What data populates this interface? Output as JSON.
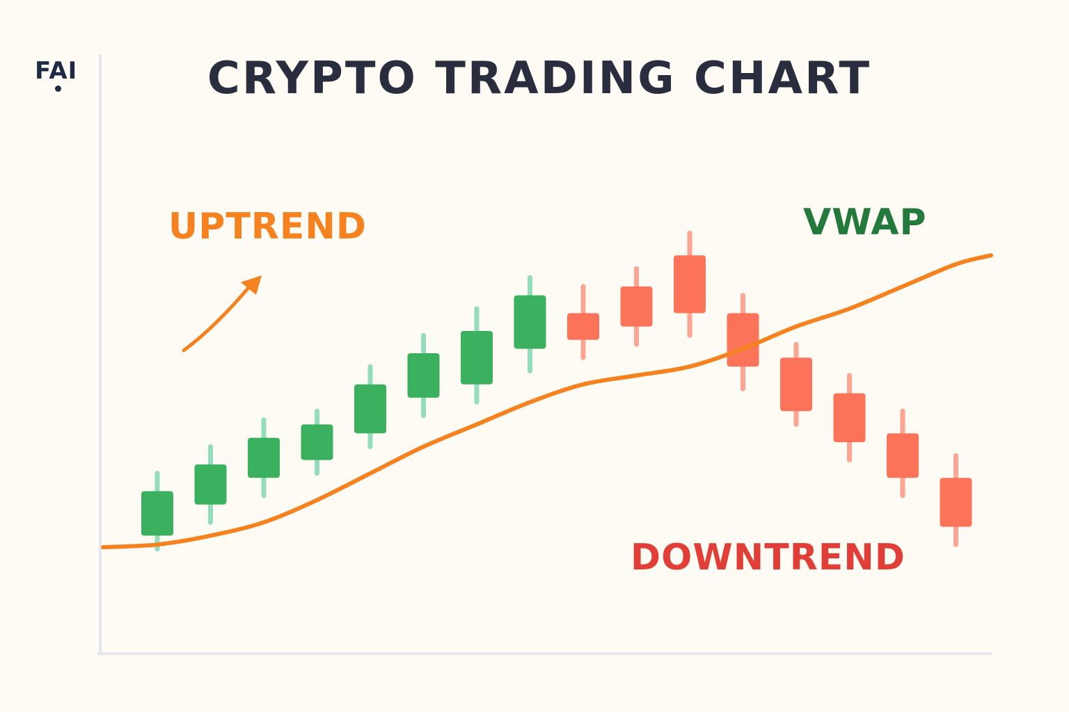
{
  "logo": {
    "text": "FAI"
  },
  "chart_data": {
    "type": "candlestick",
    "title": "CRYPTO TRADING CHART",
    "xlabel": "",
    "ylabel": "",
    "ylim": [
      0,
      100
    ],
    "grid": false,
    "colors": {
      "up": "#3bb05e",
      "down": "#fb7359",
      "up_wick": "#93dcbc",
      "down_wick": "#fba592",
      "vwap": "#f5821f"
    },
    "candles": [
      {
        "open": 14,
        "close": 24,
        "high": 28,
        "low": 11,
        "direction": "up"
      },
      {
        "open": 21,
        "close": 30,
        "high": 34,
        "low": 17,
        "direction": "up"
      },
      {
        "open": 27,
        "close": 36,
        "high": 40,
        "low": 23,
        "direction": "up"
      },
      {
        "open": 31,
        "close": 39,
        "high": 42,
        "low": 28,
        "direction": "up"
      },
      {
        "open": 37,
        "close": 48,
        "high": 52,
        "low": 34,
        "direction": "up"
      },
      {
        "open": 45,
        "close": 55,
        "high": 59,
        "low": 41,
        "direction": "up"
      },
      {
        "open": 48,
        "close": 60,
        "high": 65,
        "low": 44,
        "direction": "up"
      },
      {
        "open": 56,
        "close": 68,
        "high": 72,
        "low": 51,
        "direction": "up"
      },
      {
        "open": 64,
        "close": 58,
        "high": 70,
        "low": 54,
        "direction": "down"
      },
      {
        "open": 70,
        "close": 61,
        "high": 74,
        "low": 57,
        "direction": "down"
      },
      {
        "open": 77,
        "close": 64,
        "high": 82,
        "low": 59,
        "direction": "down"
      },
      {
        "open": 64,
        "close": 52,
        "high": 68,
        "low": 47,
        "direction": "down"
      },
      {
        "open": 54,
        "close": 42,
        "high": 57,
        "low": 39,
        "direction": "down"
      },
      {
        "open": 46,
        "close": 35,
        "high": 50,
        "low": 31,
        "direction": "down"
      },
      {
        "open": 37,
        "close": 27,
        "high": 42,
        "low": 23,
        "direction": "down"
      },
      {
        "open": 27,
        "close": 16,
        "high": 32,
        "low": 12,
        "direction": "down"
      }
    ],
    "vwap": {
      "label": "VWAP",
      "values": [
        12,
        14,
        17,
        22,
        28,
        34,
        39,
        44,
        48,
        50,
        52,
        56,
        61,
        65,
        70,
        75
      ]
    },
    "annotations": [
      {
        "text": "UPTREND",
        "color": "#f5821f"
      },
      {
        "text": "VWAP",
        "color": "#237a3c"
      },
      {
        "text": "DOWNTREND",
        "color": "#e03e36"
      }
    ]
  }
}
